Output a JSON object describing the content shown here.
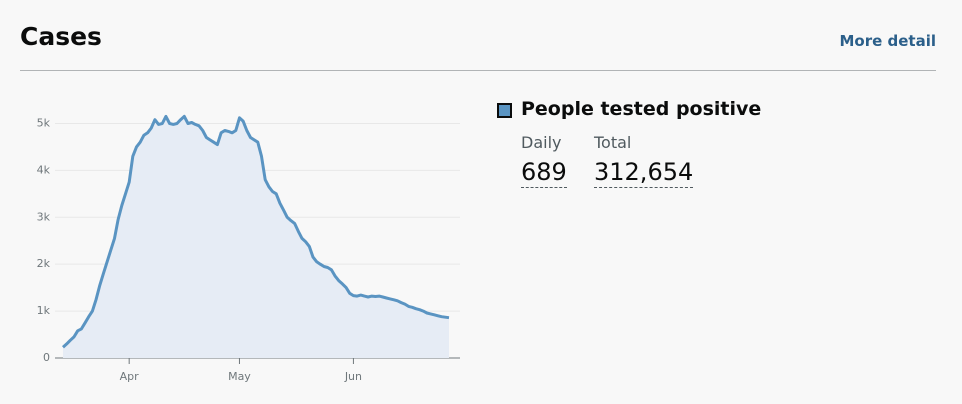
{
  "header": {
    "title": "Cases",
    "link": "More detail"
  },
  "chart_data": {
    "type": "area",
    "categories": [
      null,
      null,
      null,
      null,
      null,
      null,
      null,
      null,
      null,
      null,
      null,
      null,
      null,
      null,
      null,
      null,
      null,
      null,
      "Apr",
      null,
      null,
      null,
      null,
      null,
      null,
      null,
      null,
      null,
      null,
      null,
      null,
      null,
      null,
      null,
      null,
      null,
      null,
      null,
      null,
      null,
      null,
      null,
      null,
      null,
      null,
      null,
      null,
      null,
      "May",
      null,
      null,
      null,
      null,
      null,
      null,
      null,
      null,
      null,
      null,
      null,
      null,
      null,
      null,
      null,
      null,
      null,
      null,
      null,
      null,
      null,
      null,
      null,
      null,
      null,
      null,
      null,
      null,
      null,
      null,
      "Jun",
      null,
      null,
      null,
      null,
      null,
      null,
      null,
      null,
      null,
      null,
      null,
      null,
      null,
      null,
      null,
      null,
      null,
      null,
      null,
      null,
      null,
      null,
      null,
      null,
      null,
      null
    ],
    "series": [
      {
        "name": "People tested positive",
        "color": "#5a94c2",
        "values": [
          230,
          300,
          380,
          450,
          580,
          620,
          750,
          880,
          1000,
          1250,
          1550,
          1800,
          2050,
          2300,
          2550,
          2950,
          3250,
          3500,
          3750,
          4300,
          4500,
          4600,
          4750,
          4800,
          4900,
          5080,
          4980,
          5000,
          5150,
          5000,
          4980,
          5000,
          5080,
          5150,
          5000,
          5020,
          4980,
          4950,
          4850,
          4700,
          4650,
          4600,
          4550,
          4800,
          4850,
          4830,
          4800,
          4850,
          5120,
          5050,
          4850,
          4700,
          4650,
          4600,
          4300,
          3800,
          3650,
          3550,
          3500,
          3300,
          3150,
          3000,
          2930,
          2870,
          2700,
          2550,
          2480,
          2380,
          2150,
          2050,
          2000,
          1950,
          1930,
          1880,
          1750,
          1650,
          1580,
          1500,
          1380,
          1330,
          1320,
          1340,
          1320,
          1300,
          1320,
          1310,
          1320,
          1300,
          1280,
          1260,
          1240,
          1220,
          1180,
          1150,
          1100,
          1080,
          1050,
          1030,
          1000,
          960,
          940,
          920,
          900,
          880,
          870,
          860
        ]
      }
    ],
    "ylim": [
      0,
      5500
    ],
    "yticks": [
      0,
      {
        "value": 1000,
        "label": "1k"
      },
      {
        "value": 2000,
        "label": "2k"
      },
      {
        "value": 3000,
        "label": "3k"
      },
      {
        "value": 4000,
        "label": "4k"
      },
      {
        "value": 5000,
        "label": "5k"
      }
    ],
    "grid": true
  },
  "summary": {
    "daily": {
      "label": "Daily",
      "value": "689"
    },
    "total": {
      "label": "Total",
      "value": "312,654"
    }
  }
}
